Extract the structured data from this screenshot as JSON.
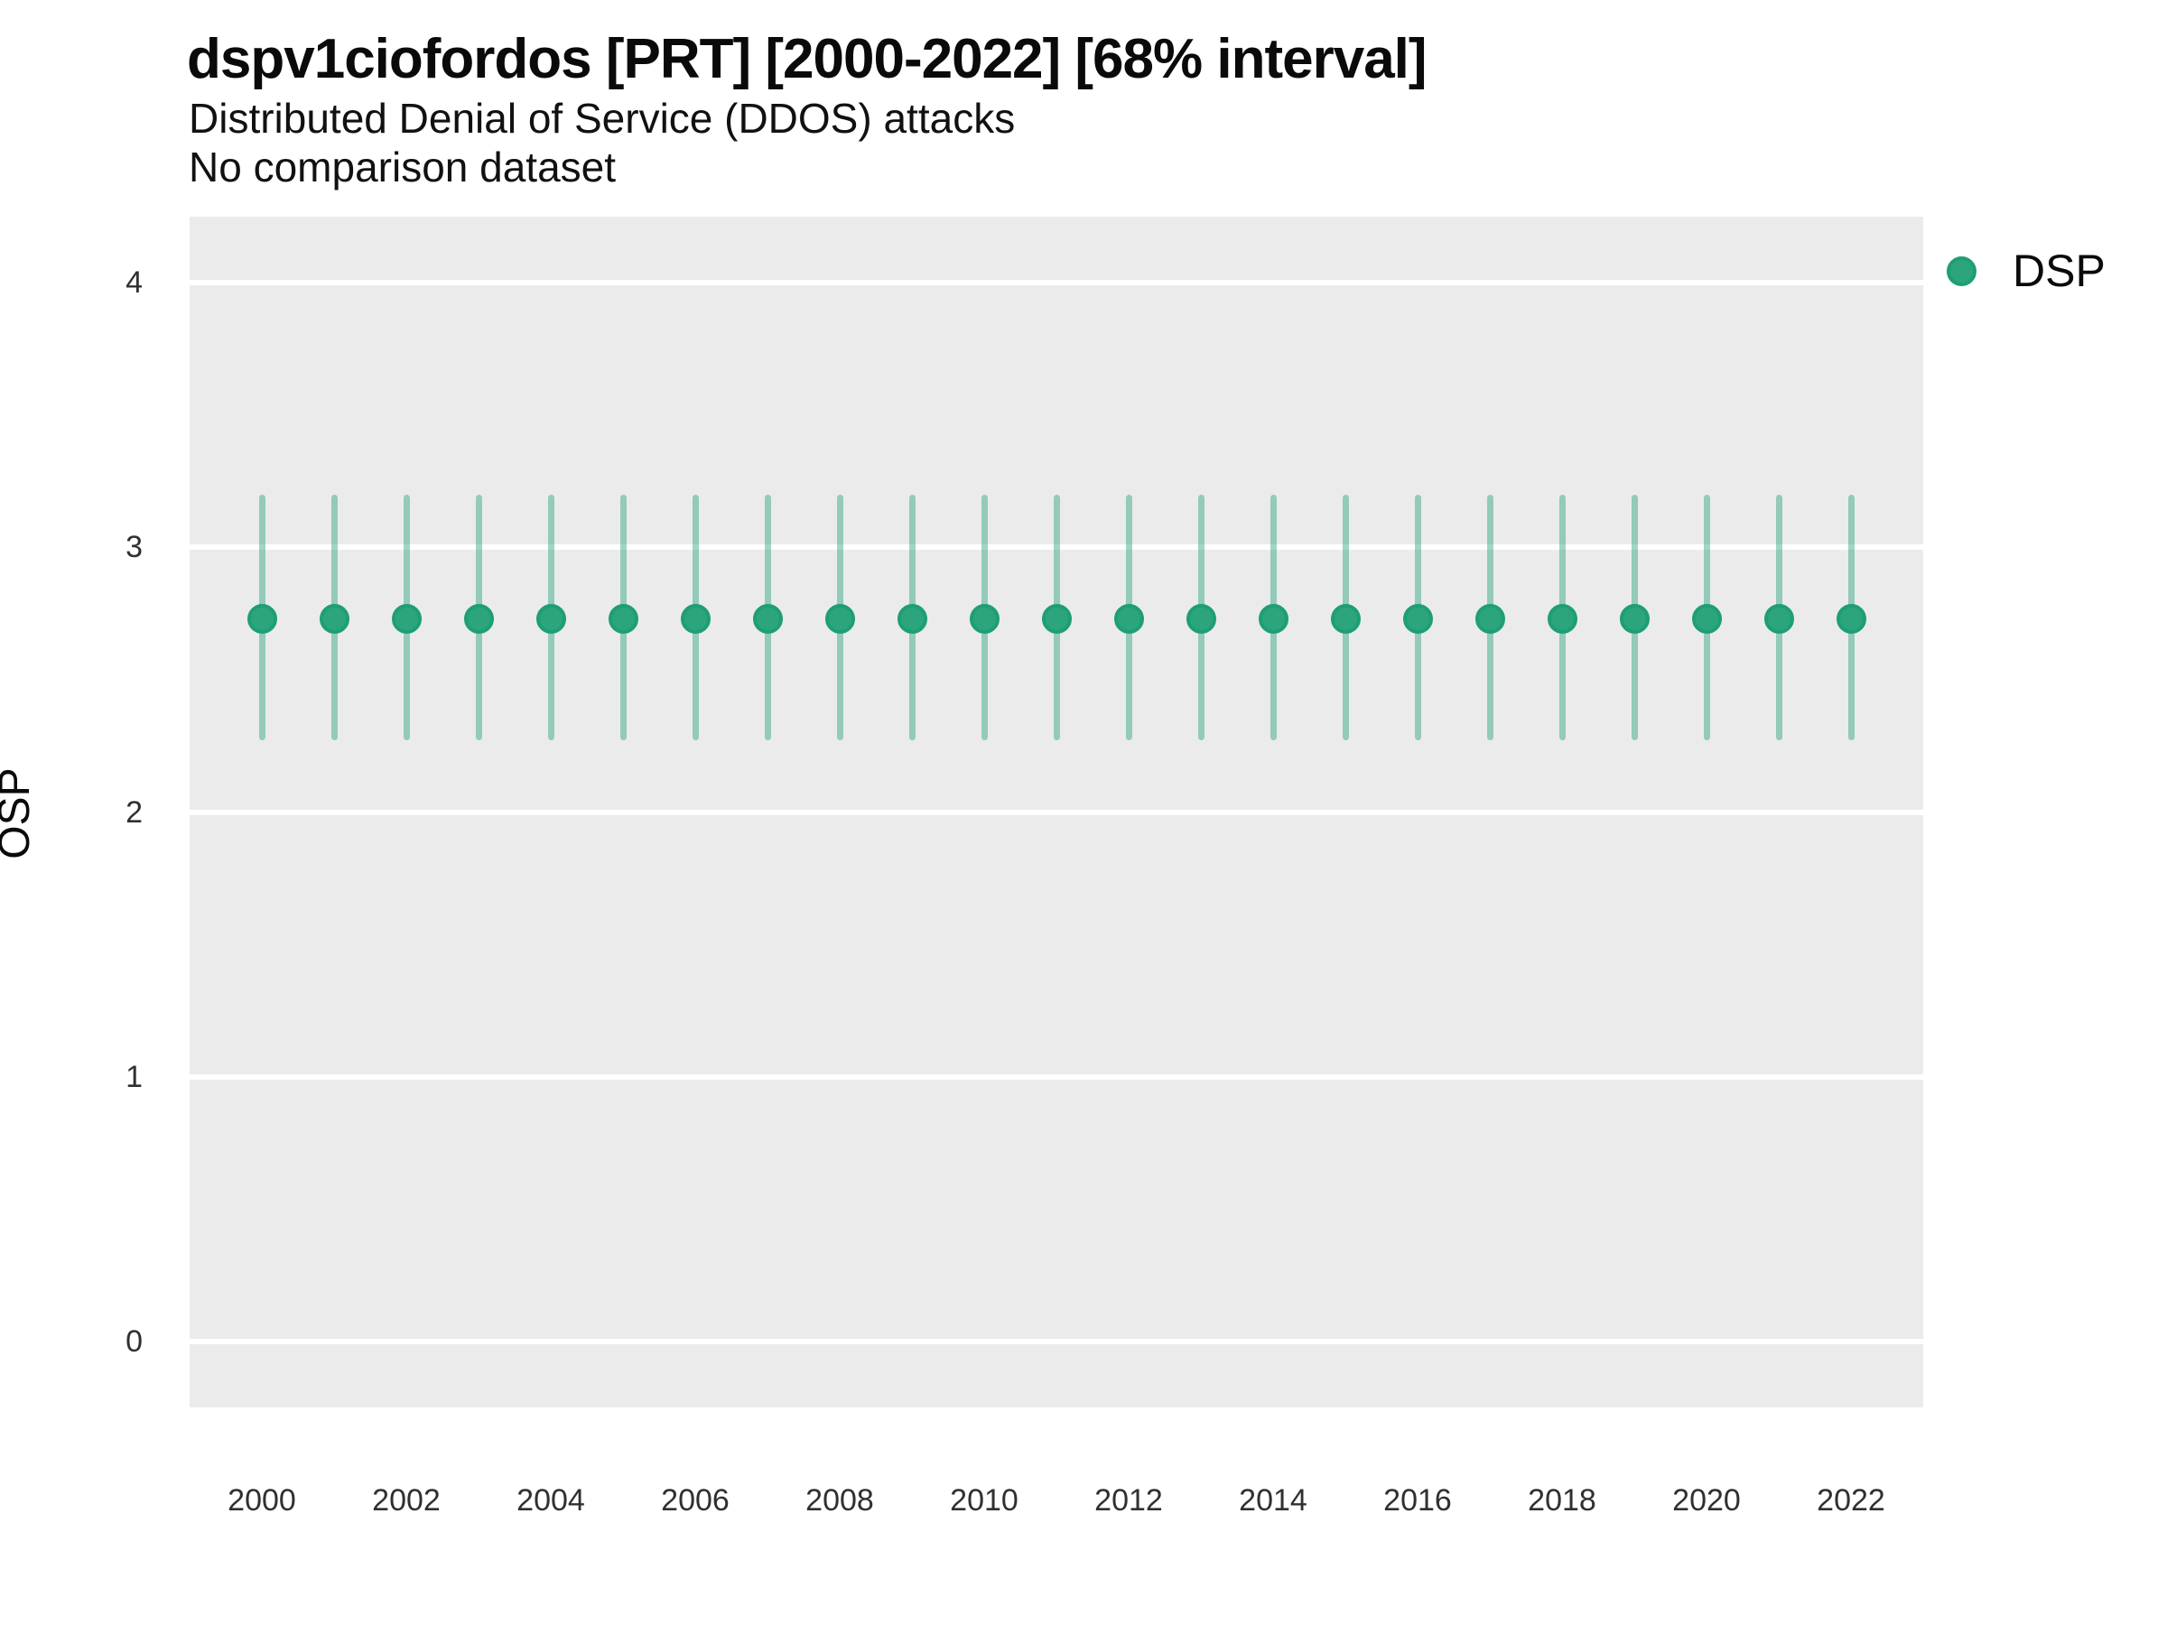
{
  "header": {
    "title": "dspv1ciofordos [PRT] [2000-2022] [68% interval]",
    "subtitle": "Distributed Denial of Service (DDOS) attacks",
    "note": "No comparison dataset"
  },
  "legend": {
    "items": [
      {
        "label": "DSP",
        "color": "#1B9E77"
      }
    ],
    "position": "right-top"
  },
  "chart_data": {
    "type": "pointrange",
    "title": "dspv1ciofordos [PRT] [2000-2022] [68% interval]",
    "subtitle": "Distributed Denial of Service (DDOS) attacks",
    "note": "No comparison dataset",
    "interval": "68%",
    "xlabel": "",
    "ylabel": "OSP",
    "x": [
      2000,
      2001,
      2002,
      2003,
      2004,
      2005,
      2006,
      2007,
      2008,
      2009,
      2010,
      2011,
      2012,
      2013,
      2014,
      2015,
      2016,
      2017,
      2018,
      2019,
      2020,
      2021,
      2022
    ],
    "series": [
      {
        "name": "DSP",
        "estimate": [
          2.73,
          2.73,
          2.73,
          2.73,
          2.73,
          2.73,
          2.73,
          2.73,
          2.73,
          2.73,
          2.73,
          2.73,
          2.73,
          2.73,
          2.73,
          2.73,
          2.73,
          2.73,
          2.73,
          2.73,
          2.73,
          2.73,
          2.73
        ],
        "lower": [
          2.27,
          2.27,
          2.27,
          2.27,
          2.27,
          2.27,
          2.27,
          2.27,
          2.27,
          2.27,
          2.27,
          2.27,
          2.27,
          2.27,
          2.27,
          2.27,
          2.27,
          2.27,
          2.27,
          2.27,
          2.27,
          2.27,
          2.27
        ],
        "upper": [
          3.2,
          3.2,
          3.2,
          3.2,
          3.2,
          3.2,
          3.2,
          3.2,
          3.2,
          3.2,
          3.2,
          3.2,
          3.2,
          3.2,
          3.2,
          3.2,
          3.2,
          3.2,
          3.2,
          3.2,
          3.2,
          3.2,
          3.2
        ]
      }
    ],
    "xticks": [
      2000,
      2002,
      2004,
      2006,
      2008,
      2010,
      2012,
      2014,
      2016,
      2018,
      2020,
      2022
    ],
    "yticks": [
      0,
      1,
      2,
      3,
      4
    ],
    "xlim": [
      1999,
      2023
    ],
    "ylim": [
      -0.25,
      4.25
    ],
    "grid": "major-y-only",
    "panel_bg": "#EBEBEB",
    "grid_color": "#FFFFFF",
    "point_color": "#1B9E77",
    "legend_position": "right-top"
  }
}
